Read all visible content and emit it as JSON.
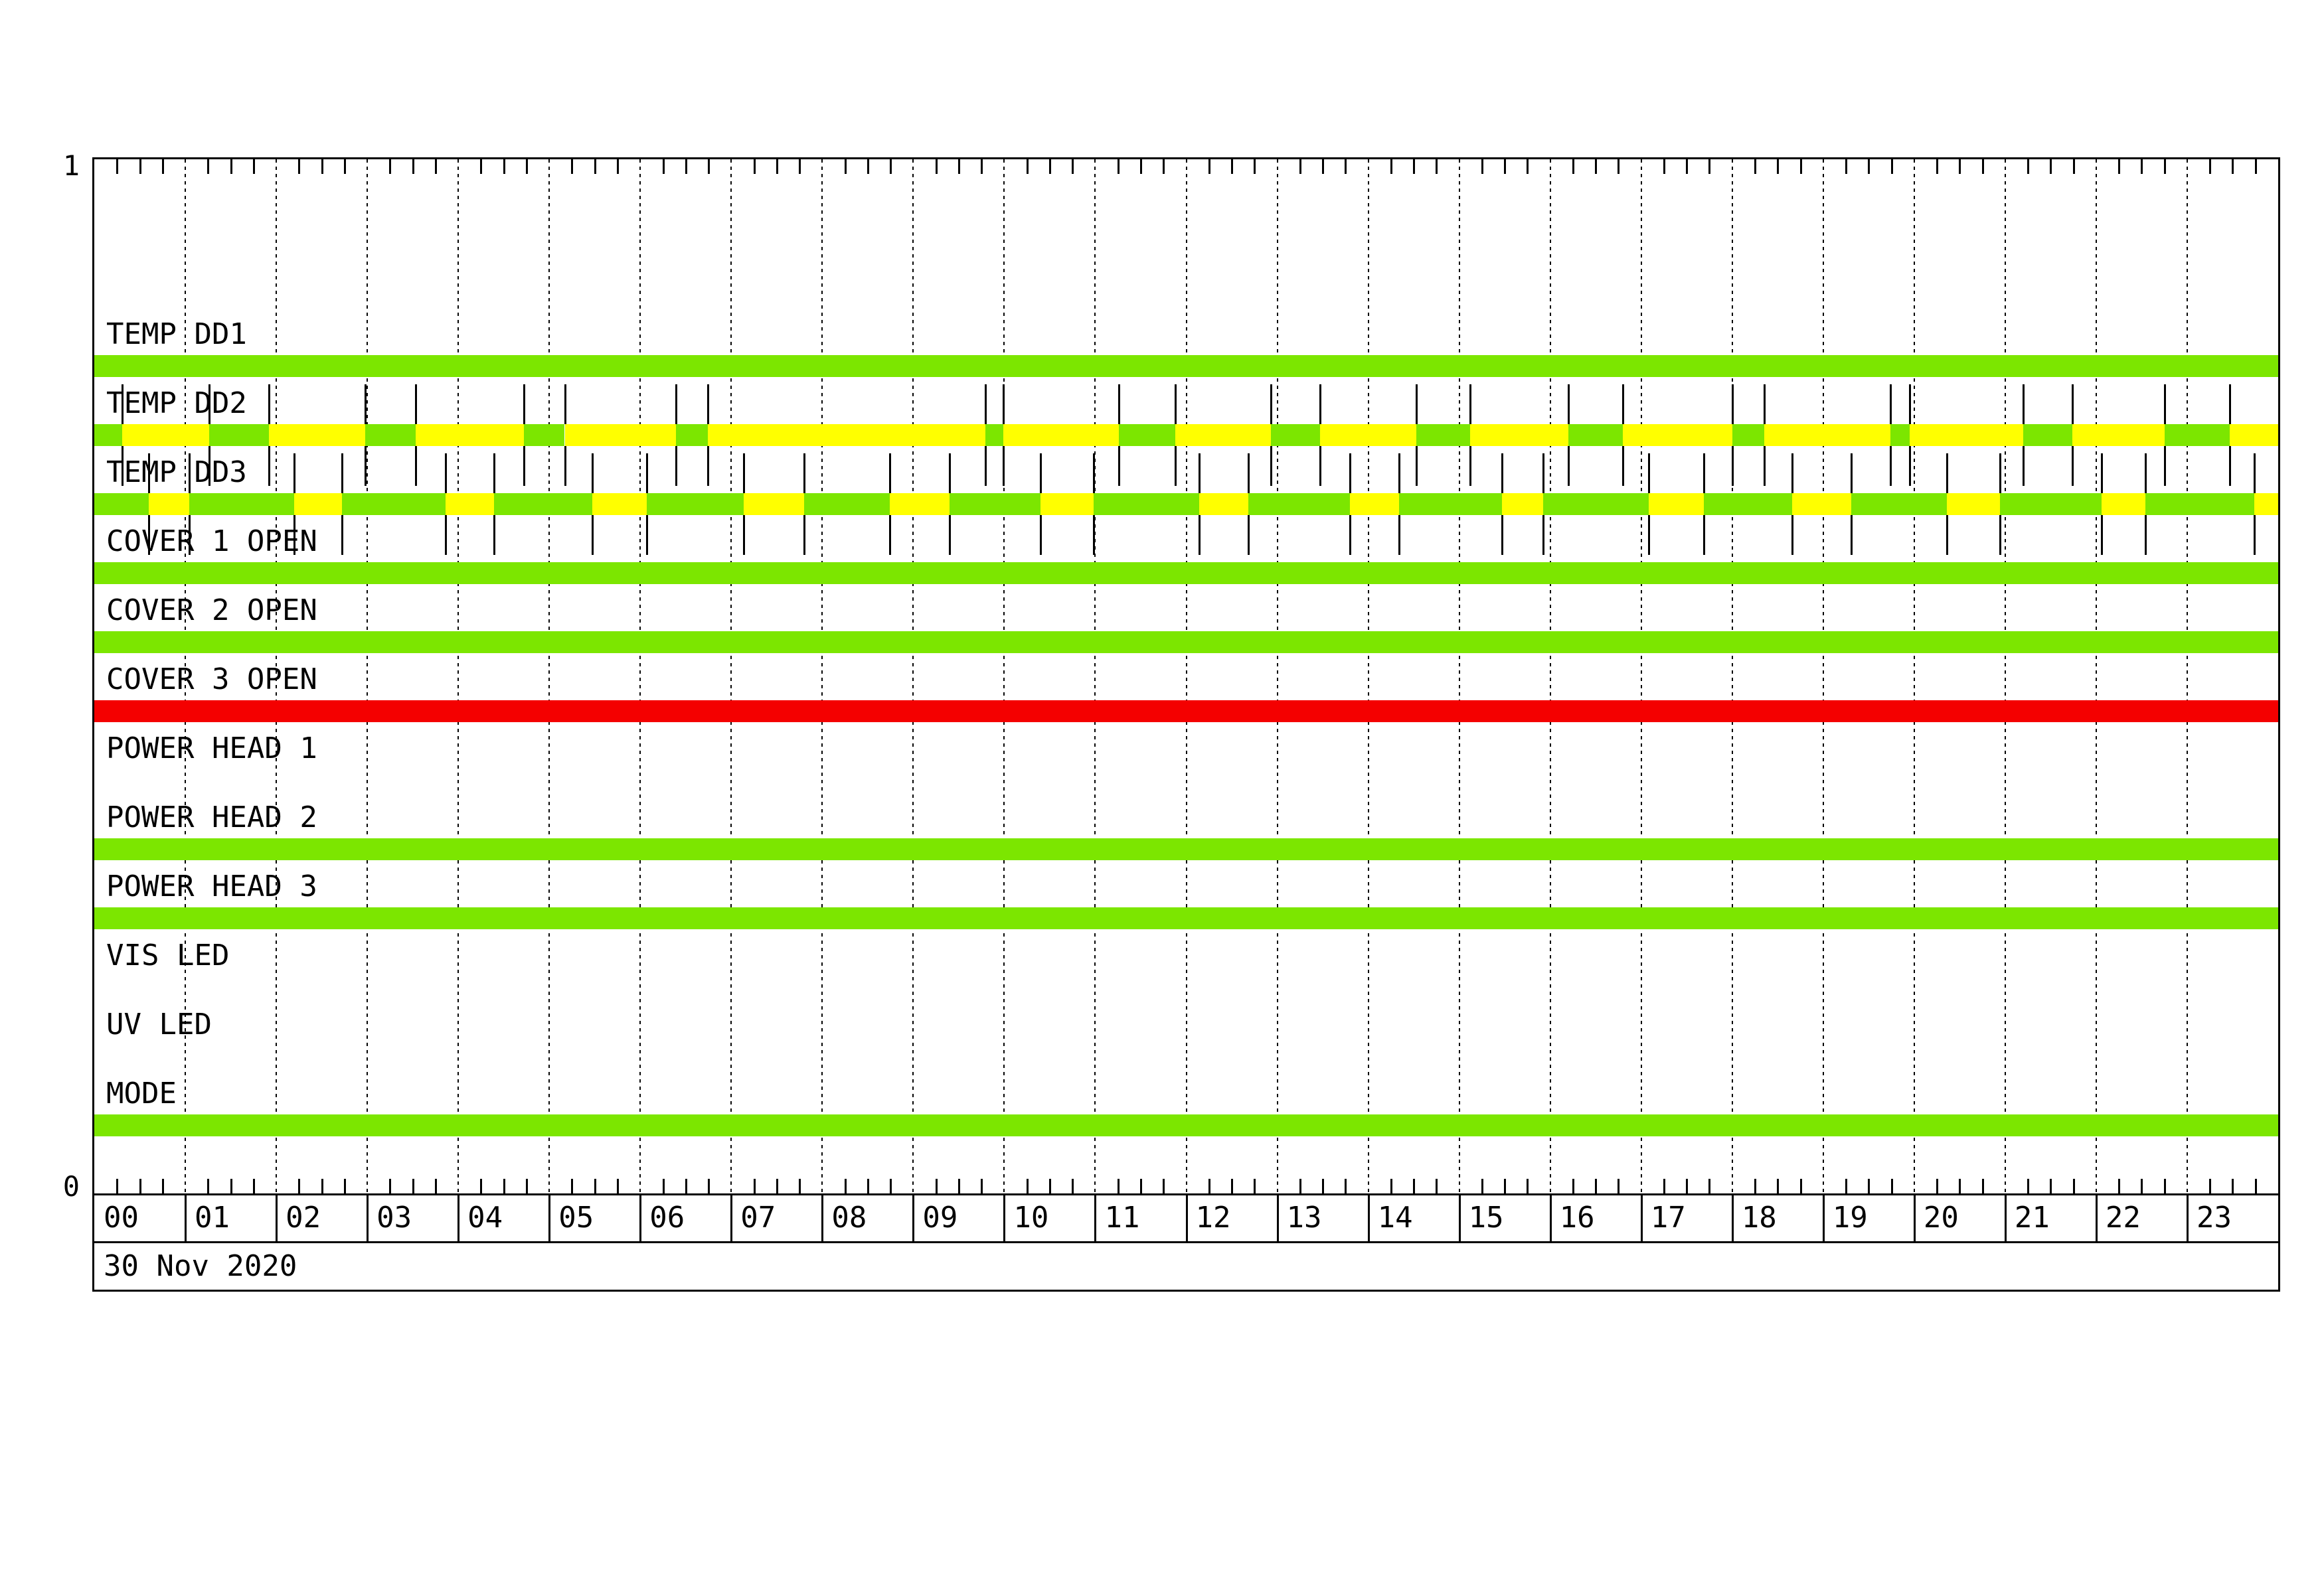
{
  "palette": {
    "green": "#7CE600",
    "yellow": "#FFFF00",
    "red": "#F40000",
    "line": "#000000",
    "background": "#FFFFFF"
  },
  "chart_data": {
    "type": "bar",
    "subtype": "state-timeline",
    "title": "",
    "x_axis": {
      "unit": "hour",
      "range": [
        0,
        24
      ],
      "tick_labels": [
        "00",
        "01",
        "02",
        "03",
        "04",
        "05",
        "06",
        "07",
        "08",
        "09",
        "10",
        "11",
        "12",
        "13",
        "14",
        "15",
        "16",
        "17",
        "18",
        "19",
        "20",
        "21",
        "22",
        "23"
      ],
      "minor_tick_minutes": 15,
      "grid": "hourly-dashed",
      "date_label": "30 Nov 2020"
    },
    "y_axis": {
      "top_label": "1",
      "bottom_label": "0"
    },
    "channels": [
      {
        "label": "TEMP DD1",
        "segments": [
          {
            "c": "green",
            "a": 0,
            "b": 24
          }
        ]
      },
      {
        "label": "TEMP DD2",
        "segments": [
          {
            "c": "green",
            "a": 0,
            "b": 0.31
          },
          {
            "c": "yellow",
            "a": 0.31,
            "b": 1.26
          },
          {
            "c": "green",
            "a": 1.26,
            "b": 1.92
          },
          {
            "c": "yellow",
            "a": 1.92,
            "b": 2.98
          },
          {
            "c": "green",
            "a": 2.98,
            "b": 3.53
          },
          {
            "c": "yellow",
            "a": 3.53,
            "b": 4.72
          },
          {
            "c": "green",
            "a": 4.72,
            "b": 5.17
          },
          {
            "c": "yellow",
            "a": 5.17,
            "b": 6.39
          },
          {
            "c": "green",
            "a": 6.39,
            "b": 6.74
          },
          {
            "c": "yellow",
            "a": 6.74,
            "b": 9.79
          },
          {
            "c": "green",
            "a": 9.79,
            "b": 9.99
          },
          {
            "c": "yellow",
            "a": 9.99,
            "b": 11.26
          },
          {
            "c": "green",
            "a": 11.26,
            "b": 11.88
          },
          {
            "c": "yellow",
            "a": 11.88,
            "b": 12.93
          },
          {
            "c": "green",
            "a": 12.93,
            "b": 13.47
          },
          {
            "c": "yellow",
            "a": 13.47,
            "b": 14.53
          },
          {
            "c": "green",
            "a": 14.53,
            "b": 15.12
          },
          {
            "c": "yellow",
            "a": 15.12,
            "b": 16.2
          },
          {
            "c": "green",
            "a": 16.2,
            "b": 16.8
          },
          {
            "c": "yellow",
            "a": 16.8,
            "b": 18.0
          },
          {
            "c": "green",
            "a": 18.0,
            "b": 18.35
          },
          {
            "c": "yellow",
            "a": 18.35,
            "b": 19.74
          },
          {
            "c": "green",
            "a": 19.74,
            "b": 19.95
          },
          {
            "c": "yellow",
            "a": 19.95,
            "b": 21.2
          },
          {
            "c": "green",
            "a": 21.2,
            "b": 21.74
          },
          {
            "c": "yellow",
            "a": 21.74,
            "b": 22.75
          },
          {
            "c": "green",
            "a": 22.75,
            "b": 23.47
          },
          {
            "c": "yellow",
            "a": 23.47,
            "b": 24
          }
        ]
      },
      {
        "label": "TEMP DD3",
        "segments": [
          {
            "c": "green",
            "a": 0,
            "b": 0.6
          },
          {
            "c": "yellow",
            "a": 0.6,
            "b": 1.04
          },
          {
            "c": "green",
            "a": 1.04,
            "b": 2.2
          },
          {
            "c": "yellow",
            "a": 2.2,
            "b": 2.72
          },
          {
            "c": "green",
            "a": 2.72,
            "b": 3.86
          },
          {
            "c": "yellow",
            "a": 3.86,
            "b": 4.39
          },
          {
            "c": "green",
            "a": 4.39,
            "b": 5.47
          },
          {
            "c": "yellow",
            "a": 5.47,
            "b": 6.07
          },
          {
            "c": "green",
            "a": 6.07,
            "b": 7.14
          },
          {
            "c": "yellow",
            "a": 7.14,
            "b": 7.8
          },
          {
            "c": "green",
            "a": 7.8,
            "b": 8.74
          },
          {
            "c": "yellow",
            "a": 8.74,
            "b": 9.4
          },
          {
            "c": "green",
            "a": 9.4,
            "b": 10.4
          },
          {
            "c": "yellow",
            "a": 10.4,
            "b": 10.98
          },
          {
            "c": "green",
            "a": 10.98,
            "b": 12.14
          },
          {
            "c": "yellow",
            "a": 12.14,
            "b": 12.68
          },
          {
            "c": "green",
            "a": 12.68,
            "b": 13.8
          },
          {
            "c": "yellow",
            "a": 13.8,
            "b": 14.34
          },
          {
            "c": "green",
            "a": 14.34,
            "b": 15.47
          },
          {
            "c": "yellow",
            "a": 15.47,
            "b": 15.92
          },
          {
            "c": "green",
            "a": 15.92,
            "b": 17.08
          },
          {
            "c": "yellow",
            "a": 17.08,
            "b": 17.69
          },
          {
            "c": "green",
            "a": 17.69,
            "b": 18.66
          },
          {
            "c": "yellow",
            "a": 18.66,
            "b": 19.31
          },
          {
            "c": "green",
            "a": 19.31,
            "b": 20.36
          },
          {
            "c": "yellow",
            "a": 20.36,
            "b": 20.94
          },
          {
            "c": "green",
            "a": 20.94,
            "b": 22.06
          },
          {
            "c": "yellow",
            "a": 22.06,
            "b": 22.54
          },
          {
            "c": "green",
            "a": 22.54,
            "b": 23.74
          },
          {
            "c": "yellow",
            "a": 23.74,
            "b": 24
          }
        ]
      },
      {
        "label": "COVER 1 OPEN",
        "segments": [
          {
            "c": "green",
            "a": 0,
            "b": 24
          }
        ]
      },
      {
        "label": "COVER 2 OPEN",
        "segments": [
          {
            "c": "green",
            "a": 0,
            "b": 24
          }
        ]
      },
      {
        "label": "COVER 3 OPEN",
        "segments": [
          {
            "c": "red",
            "a": 0,
            "b": 24
          }
        ]
      },
      {
        "label": "POWER HEAD 1",
        "segments": []
      },
      {
        "label": "POWER HEAD 2",
        "segments": [
          {
            "c": "green",
            "a": 0,
            "b": 24
          }
        ]
      },
      {
        "label": "POWER HEAD 3",
        "segments": [
          {
            "c": "green",
            "a": 0,
            "b": 24
          }
        ]
      },
      {
        "label": "VIS LED",
        "segments": []
      },
      {
        "label": "UV LED",
        "segments": []
      },
      {
        "label": "MODE",
        "segments": [
          {
            "c": "green",
            "a": 0,
            "b": 24
          }
        ]
      }
    ]
  }
}
